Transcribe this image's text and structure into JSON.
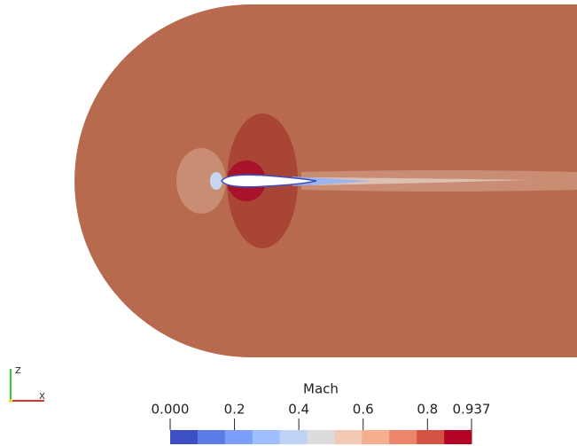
{
  "colorbar": {
    "title": "Mach",
    "range": [
      0,
      0.937
    ],
    "ticks": [
      {
        "value": 0,
        "label": "0.000"
      },
      0.2,
      0.4,
      0.6,
      0.8,
      0.937
    ],
    "colors": [
      "#3d50c3",
      "#5b7be6",
      "#7b9ff9",
      "#9ebeff",
      "#bfd3f6",
      "#dddcdc",
      "#f2c9b4",
      "#f7ad90",
      "#ec8569",
      "#d45342",
      "#b40426"
    ]
  },
  "axes_triad": {
    "z_label": "Z",
    "x_label": "X"
  }
}
